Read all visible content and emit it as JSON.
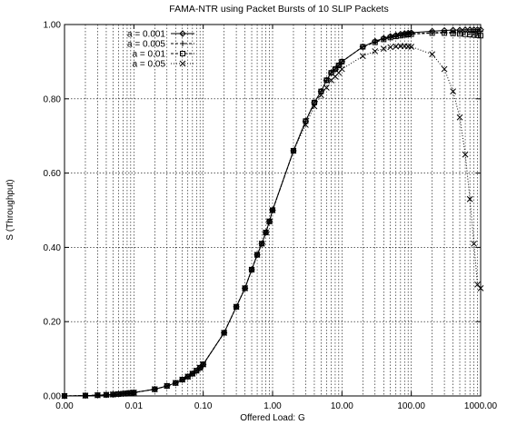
{
  "chart_data": {
    "type": "line",
    "title": "FAMA-NTR using Packet Bursts of 10 SLIP Packets",
    "xlabel": "Offered Load: G",
    "ylabel": "S (Throughput)",
    "x_scale": "log",
    "xlim": [
      0.001,
      1000
    ],
    "ylim": [
      0,
      1
    ],
    "xticks": [
      {
        "value": 0.001,
        "label": "0.00"
      },
      {
        "value": 0.01,
        "label": "0.01"
      },
      {
        "value": 0.1,
        "label": "0.10"
      },
      {
        "value": 1,
        "label": "1.00"
      },
      {
        "value": 10,
        "label": "10.00"
      },
      {
        "value": 100,
        "label": "100.00"
      },
      {
        "value": 1000,
        "label": "1000.00"
      }
    ],
    "yticks": [
      {
        "value": 0.0,
        "label": "0.00"
      },
      {
        "value": 0.2,
        "label": "0.20"
      },
      {
        "value": 0.4,
        "label": "0.40"
      },
      {
        "value": 0.6,
        "label": "0.60"
      },
      {
        "value": 0.8,
        "label": "0.80"
      },
      {
        "value": 1.0,
        "label": "1.00"
      }
    ],
    "grid": true,
    "legend_position": "top-left",
    "series": [
      {
        "name": "a = 0.001",
        "marker": "diamond",
        "line": "solid",
        "color": "#000000",
        "x": [
          0.001,
          0.002,
          0.003,
          0.004,
          0.005,
          0.006,
          0.007,
          0.008,
          0.009,
          0.01,
          0.02,
          0.03,
          0.04,
          0.05,
          0.06,
          0.07,
          0.08,
          0.09,
          0.1,
          0.2,
          0.3,
          0.4,
          0.5,
          0.6,
          0.7,
          0.8,
          0.9,
          1,
          2,
          3,
          4,
          5,
          6,
          7,
          8,
          9,
          10,
          20,
          30,
          40,
          50,
          60,
          70,
          80,
          90,
          100,
          200,
          300,
          400,
          500,
          600,
          700,
          800,
          900,
          1000
        ],
        "y": [
          0.0,
          0.001,
          0.002,
          0.003,
          0.004,
          0.005,
          0.006,
          0.007,
          0.008,
          0.009,
          0.018,
          0.027,
          0.035,
          0.044,
          0.052,
          0.06,
          0.068,
          0.076,
          0.085,
          0.17,
          0.24,
          0.29,
          0.34,
          0.38,
          0.41,
          0.44,
          0.47,
          0.5,
          0.66,
          0.74,
          0.79,
          0.82,
          0.85,
          0.87,
          0.88,
          0.89,
          0.9,
          0.94,
          0.955,
          0.963,
          0.968,
          0.971,
          0.974,
          0.976,
          0.977,
          0.978,
          0.982,
          0.984,
          0.985,
          0.985,
          0.986,
          0.986,
          0.986,
          0.986,
          0.986
        ]
      },
      {
        "name": "a = 0.005",
        "marker": "plus",
        "line": "dashed",
        "color": "#000000",
        "x": [
          0.001,
          0.002,
          0.003,
          0.004,
          0.005,
          0.006,
          0.007,
          0.008,
          0.009,
          0.01,
          0.02,
          0.03,
          0.04,
          0.05,
          0.06,
          0.07,
          0.08,
          0.09,
          0.1,
          0.2,
          0.3,
          0.4,
          0.5,
          0.6,
          0.7,
          0.8,
          0.9,
          1,
          2,
          3,
          4,
          5,
          6,
          7,
          8,
          9,
          10,
          20,
          30,
          40,
          50,
          60,
          70,
          80,
          90,
          100,
          200,
          300,
          400,
          500,
          600,
          700,
          800,
          900,
          1000
        ],
        "y": [
          0.0,
          0.001,
          0.002,
          0.003,
          0.004,
          0.005,
          0.006,
          0.007,
          0.008,
          0.009,
          0.018,
          0.027,
          0.035,
          0.044,
          0.052,
          0.06,
          0.068,
          0.076,
          0.085,
          0.17,
          0.24,
          0.29,
          0.34,
          0.38,
          0.41,
          0.44,
          0.47,
          0.5,
          0.66,
          0.74,
          0.79,
          0.82,
          0.85,
          0.87,
          0.88,
          0.89,
          0.9,
          0.94,
          0.953,
          0.961,
          0.966,
          0.969,
          0.971,
          0.973,
          0.974,
          0.975,
          0.978,
          0.979,
          0.979,
          0.98,
          0.98,
          0.98,
          0.981,
          0.981,
          0.981
        ]
      },
      {
        "name": "a = 0.01",
        "marker": "square",
        "line": "dashed",
        "color": "#000000",
        "x": [
          0.001,
          0.002,
          0.003,
          0.004,
          0.005,
          0.006,
          0.007,
          0.008,
          0.009,
          0.01,
          0.02,
          0.03,
          0.04,
          0.05,
          0.06,
          0.07,
          0.08,
          0.09,
          0.1,
          0.2,
          0.3,
          0.4,
          0.5,
          0.6,
          0.7,
          0.8,
          0.9,
          1,
          2,
          3,
          4,
          5,
          6,
          7,
          8,
          9,
          10,
          20,
          30,
          40,
          50,
          60,
          70,
          80,
          90,
          100,
          200,
          300,
          400,
          500,
          600,
          700,
          800,
          900,
          1000
        ],
        "y": [
          0.0,
          0.001,
          0.002,
          0.003,
          0.004,
          0.005,
          0.006,
          0.007,
          0.008,
          0.009,
          0.018,
          0.027,
          0.035,
          0.044,
          0.052,
          0.06,
          0.068,
          0.076,
          0.085,
          0.17,
          0.24,
          0.29,
          0.34,
          0.38,
          0.41,
          0.44,
          0.47,
          0.5,
          0.66,
          0.74,
          0.79,
          0.82,
          0.85,
          0.87,
          0.88,
          0.89,
          0.9,
          0.94,
          0.952,
          0.96,
          0.965,
          0.968,
          0.97,
          0.972,
          0.973,
          0.974,
          0.977,
          0.977,
          0.976,
          0.975,
          0.974,
          0.973,
          0.972,
          0.971,
          0.97
        ]
      },
      {
        "name": "a = 0.05",
        "marker": "cross",
        "line": "dotted",
        "color": "#000000",
        "x": [
          0.001,
          0.002,
          0.003,
          0.004,
          0.005,
          0.006,
          0.007,
          0.008,
          0.009,
          0.01,
          0.02,
          0.03,
          0.04,
          0.05,
          0.06,
          0.07,
          0.08,
          0.09,
          0.1,
          0.2,
          0.3,
          0.4,
          0.5,
          0.6,
          0.7,
          0.8,
          0.9,
          1,
          2,
          3,
          4,
          5,
          6,
          7,
          8,
          9,
          10,
          20,
          30,
          40,
          50,
          60,
          70,
          80,
          90,
          100,
          200,
          300,
          400,
          500,
          600,
          700,
          800,
          900,
          1000
        ],
        "y": [
          0.0,
          0.001,
          0.002,
          0.003,
          0.004,
          0.005,
          0.006,
          0.007,
          0.008,
          0.009,
          0.018,
          0.027,
          0.035,
          0.044,
          0.052,
          0.06,
          0.068,
          0.076,
          0.085,
          0.17,
          0.24,
          0.29,
          0.34,
          0.38,
          0.41,
          0.44,
          0.47,
          0.5,
          0.66,
          0.73,
          0.78,
          0.81,
          0.83,
          0.85,
          0.86,
          0.87,
          0.88,
          0.915,
          0.928,
          0.935,
          0.939,
          0.941,
          0.942,
          0.942,
          0.941,
          0.94,
          0.92,
          0.88,
          0.82,
          0.75,
          0.65,
          0.53,
          0.41,
          0.3,
          0.29
        ]
      }
    ]
  }
}
